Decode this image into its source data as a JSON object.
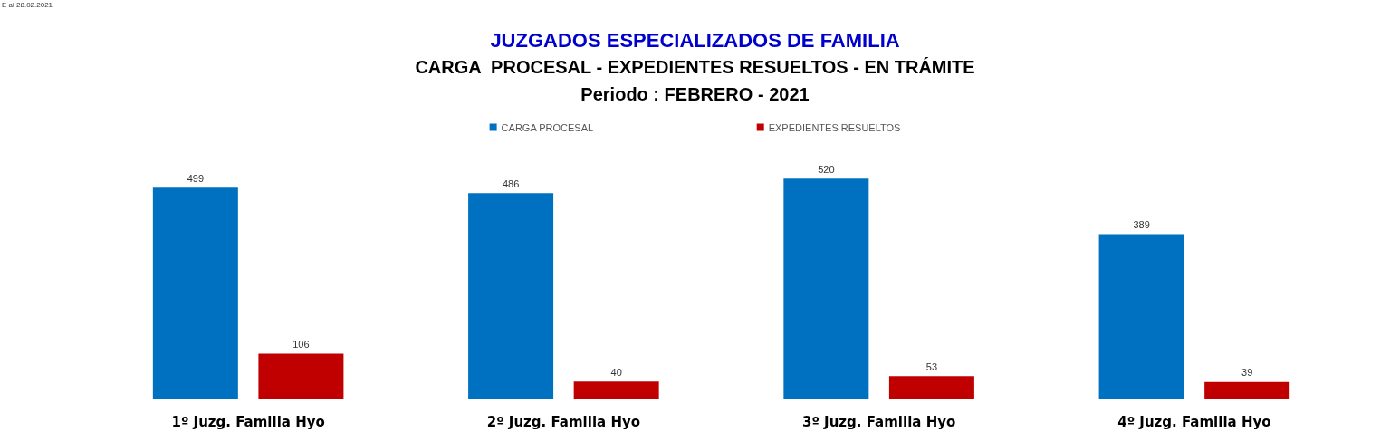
{
  "chart_data": {
    "type": "bar",
    "title": "JUZGADOS ESPECIALIZADOS DE FAMILIA",
    "subtitle": "CARGA  PROCESAL - EXPEDIENTES RESUELTOS - EN TRÁMITE\nPeriodo : FEBRERO - 2021",
    "categories": [
      "1º Juzg. Familia Hyo",
      "2º Juzg. Familia Hyo",
      "3º Juzg. Familia Hyo",
      "4º Juzg. Familia Hyo"
    ],
    "series": [
      {
        "name": "CARGA PROCESAL",
        "color": "#0070c0",
        "values": [
          499,
          486,
          520,
          389
        ]
      },
      {
        "name": "EXPEDIENTES RESUELTOS",
        "color": "#c00000",
        "values": [
          106,
          40,
          53,
          39
        ]
      }
    ],
    "data_labels": true,
    "grid": false,
    "legend": "top",
    "tick_labels": "x",
    "annotations": [
      "E al 28.02.2021"
    ]
  }
}
